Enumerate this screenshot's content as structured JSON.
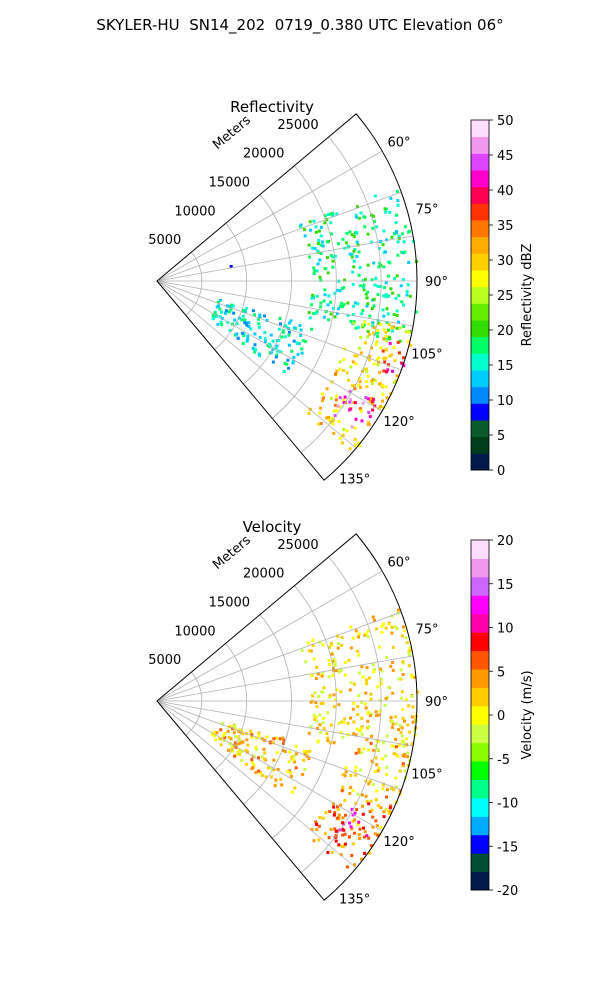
{
  "figure": {
    "title": "SKYLER-HU  SN14_202  0719_0.380 UTC Elevation 06°"
  },
  "chart_data": [
    {
      "type": "heatmap",
      "title": "Reflectivity",
      "projection": "polar sector",
      "radial_label": "Meters",
      "radial_ticks": [
        5000,
        10000,
        15000,
        20000,
        25000
      ],
      "radial_tick_labels": [
        "5000",
        "10000",
        "15000",
        "20000",
        "25000"
      ],
      "radial_max": 29000,
      "azimuth_range": [
        50,
        140
      ],
      "azimuth_ticks": [
        60,
        75,
        90,
        105,
        120,
        135
      ],
      "azimuth_tick_labels": [
        "60°",
        "75°",
        "90°",
        "105°",
        "120°",
        "135°"
      ],
      "grid": true,
      "colorbar": {
        "label": "Reflectivity dBZ",
        "range": [
          0,
          50
        ],
        "ticks": [
          0,
          5,
          10,
          15,
          20,
          25,
          30,
          35,
          40,
          45,
          50
        ]
      },
      "features": [
        {
          "az_from": 68,
          "az_to": 104,
          "r_from": 17000,
          "r_to": 29000,
          "value": 17
        },
        {
          "az_from": 100,
          "az_to": 116,
          "r_from": 22000,
          "r_to": 29000,
          "value": 28
        },
        {
          "az_from": 104,
          "az_to": 112,
          "r_from": 26000,
          "r_to": 29000,
          "value": 40
        },
        {
          "az_from": 114,
          "az_to": 132,
          "r_from": 22000,
          "r_to": 29000,
          "value": 30
        },
        {
          "az_from": 118,
          "az_to": 127,
          "r_from": 24000,
          "r_to": 28000,
          "value": 42
        },
        {
          "az_from": 106,
          "az_to": 126,
          "r_from": 7000,
          "r_to": 18000,
          "value": 15
        },
        {
          "az_from": 77,
          "az_to": 79,
          "r_from": 8000,
          "r_to": 9000,
          "value": 6
        }
      ]
    },
    {
      "type": "heatmap",
      "title": "Velocity",
      "projection": "polar sector",
      "radial_label": "Meters",
      "radial_ticks": [
        5000,
        10000,
        15000,
        20000,
        25000
      ],
      "radial_tick_labels": [
        "5000",
        "10000",
        "15000",
        "20000",
        "25000"
      ],
      "radial_max": 29000,
      "azimuth_range": [
        50,
        140
      ],
      "azimuth_ticks": [
        60,
        75,
        90,
        105,
        120,
        135
      ],
      "azimuth_tick_labels": [
        "60°",
        "75°",
        "90°",
        "105°",
        "120°",
        "135°"
      ],
      "grid": true,
      "colorbar": {
        "label": "Velocity (m/s)",
        "range": [
          -20,
          20
        ],
        "ticks": [
          -20,
          -15,
          -10,
          -5,
          0,
          5,
          10,
          15,
          20
        ]
      },
      "features": [
        {
          "az_from": 68,
          "az_to": 104,
          "r_from": 17000,
          "r_to": 29000,
          "value": 1
        },
        {
          "az_from": 100,
          "az_to": 116,
          "r_from": 22000,
          "r_to": 29000,
          "value": 2
        },
        {
          "az_from": 114,
          "az_to": 132,
          "r_from": 22000,
          "r_to": 29000,
          "value": 5
        },
        {
          "az_from": 118,
          "az_to": 127,
          "r_from": 24000,
          "r_to": 28000,
          "value": 9
        },
        {
          "az_from": 106,
          "az_to": 126,
          "r_from": 7000,
          "r_to": 18000,
          "value": 2
        }
      ]
    }
  ],
  "colormaps": {
    "reflectivity": [
      "#001a4d",
      "#003d1a",
      "#0a5c2e",
      "#0000ff",
      "#0088ff",
      "#00ccff",
      "#00ffcc",
      "#00ff66",
      "#33dd00",
      "#66ee00",
      "#bbff22",
      "#ffff00",
      "#ffd000",
      "#ffaa00",
      "#ff7700",
      "#ff3300",
      "#ff0055",
      "#ff00cc",
      "#dd44ff",
      "#ee99ee",
      "#ffddff"
    ],
    "velocity": [
      "#001a4d",
      "#004d33",
      "#0000ff",
      "#00aaff",
      "#00ffff",
      "#00ff88",
      "#00ff00",
      "#88ff00",
      "#ccff44",
      "#ffff00",
      "#ffcc00",
      "#ff9900",
      "#ff5500",
      "#ff0000",
      "#ff00aa",
      "#ff00ff",
      "#cc66ff",
      "#ee99ee",
      "#ffddff"
    ]
  }
}
